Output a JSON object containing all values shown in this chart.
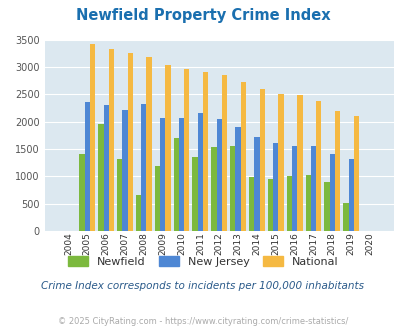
{
  "title": "Newfield Property Crime Index",
  "title_color": "#1a6faf",
  "years": [
    2004,
    2005,
    2006,
    2007,
    2008,
    2009,
    2010,
    2011,
    2012,
    2013,
    2014,
    2015,
    2016,
    2017,
    2018,
    2019,
    2020
  ],
  "newfield": [
    0,
    1400,
    1950,
    1320,
    650,
    1190,
    1700,
    1350,
    1530,
    1560,
    980,
    950,
    1010,
    1020,
    900,
    520,
    0
  ],
  "new_jersey": [
    0,
    2360,
    2310,
    2210,
    2330,
    2070,
    2070,
    2160,
    2050,
    1900,
    1720,
    1610,
    1550,
    1560,
    1400,
    1310,
    0
  ],
  "national": [
    0,
    3420,
    3330,
    3260,
    3190,
    3040,
    2960,
    2900,
    2860,
    2730,
    2590,
    2500,
    2480,
    2380,
    2200,
    2110,
    0
  ],
  "newfield_color": "#7cb93e",
  "nj_color": "#4e87d4",
  "national_color": "#f5b942",
  "plot_bg": "#dce8f0",
  "ylim": [
    0,
    3500
  ],
  "yticks": [
    0,
    500,
    1000,
    1500,
    2000,
    2500,
    3000,
    3500
  ],
  "subtitle": "Crime Index corresponds to incidents per 100,000 inhabitants",
  "subtitle_color": "#2a5a8a",
  "footer": "© 2025 CityRating.com - https://www.cityrating.com/crime-statistics/",
  "footer_color": "#aaaaaa",
  "bar_width": 0.28,
  "legend_labels": [
    "Newfield",
    "New Jersey",
    "National"
  ]
}
